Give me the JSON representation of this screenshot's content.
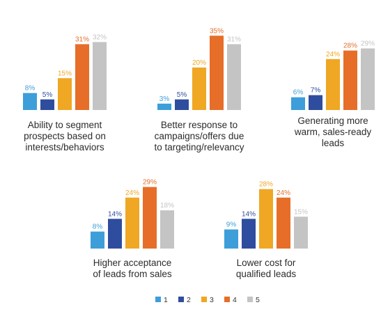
{
  "chart_data": {
    "type": "bar",
    "legend": {
      "placement": "bottom-center",
      "entries": [
        "1",
        "2",
        "3",
        "4",
        "5"
      ]
    },
    "series_colors": [
      "#3d9ed9",
      "#2f4d9e",
      "#efa724",
      "#e66e28",
      "#c4c4c4"
    ],
    "value_suffix": "%",
    "groups": [
      {
        "caption": [
          "Ability to segment",
          "prospects based on",
          "interests/behaviors"
        ],
        "values": [
          8,
          5,
          15,
          31,
          32
        ]
      },
      {
        "caption": [
          "Better response to",
          "campaigns/offers due",
          "to targeting/relevancy"
        ],
        "values": [
          3,
          5,
          20,
          35,
          31
        ]
      },
      {
        "caption": [
          "Generating more",
          "warm, sales-ready",
          "leads"
        ],
        "values": [
          6,
          7,
          24,
          28,
          29
        ]
      },
      {
        "caption": [
          "Higher acceptance",
          "of leads from sales"
        ],
        "values": [
          8,
          14,
          24,
          29,
          18
        ]
      },
      {
        "caption": [
          "Lower cost for",
          "qualified leads"
        ],
        "values": [
          9,
          14,
          28,
          24,
          15
        ]
      }
    ]
  }
}
